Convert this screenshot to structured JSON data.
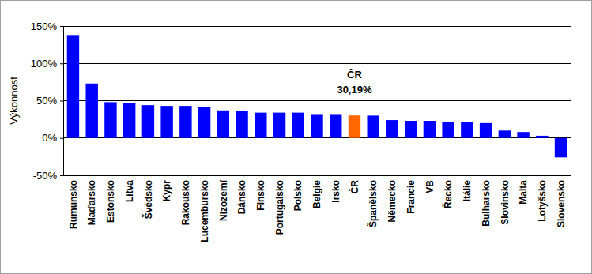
{
  "chart_data": {
    "type": "bar",
    "y_label": "Výkonnost",
    "categories": [
      "Rumunsko",
      "Maďarsko",
      "Estonsko",
      "Litva",
      "Švédsko",
      "Kypr",
      "Rakousko",
      "Lucembursko",
      "Nizozemí",
      "Dánsko",
      "Finsko",
      "Portugalsko",
      "Polsko",
      "Belgie",
      "Irsko",
      "ČR",
      "Španělsko",
      "Německo",
      "Francie",
      "VB",
      "Řecko",
      "Itálie",
      "Bulharsko",
      "Slovinsko",
      "Malta",
      "Lotyšsko",
      "Slovensko"
    ],
    "values": [
      138,
      73,
      48,
      47,
      44,
      43,
      43,
      41,
      37,
      36,
      34,
      34,
      34,
      31,
      31,
      30.19,
      30,
      24,
      23,
      23,
      22,
      21,
      20,
      10,
      8,
      3,
      -26
    ],
    "colors": [
      "#0000ff",
      "#0000ff",
      "#0000ff",
      "#0000ff",
      "#0000ff",
      "#0000ff",
      "#0000ff",
      "#0000ff",
      "#0000ff",
      "#0000ff",
      "#0000ff",
      "#0000ff",
      "#0000ff",
      "#0000ff",
      "#0000ff",
      "#ff6600",
      "#0000ff",
      "#0000ff",
      "#0000ff",
      "#0000ff",
      "#0000ff",
      "#0000ff",
      "#0000ff",
      "#0000ff",
      "#0000ff",
      "#0000ff",
      "#0000ff"
    ],
    "annotations": [
      "ČR",
      "30,19%"
    ],
    "ylim": [
      -50,
      150
    ],
    "yticks": [
      {
        "value": -50,
        "label": "-50%"
      },
      {
        "value": 0,
        "label": "0%"
      },
      {
        "value": 50,
        "label": "50%"
      },
      {
        "value": 100,
        "label": "100%"
      },
      {
        "value": 150,
        "label": "150%"
      }
    ],
    "grid": true
  }
}
